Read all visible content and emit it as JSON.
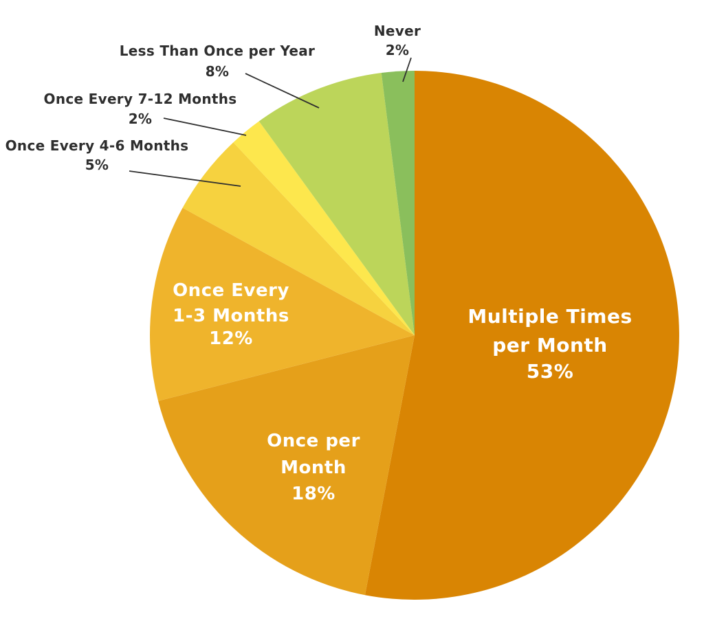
{
  "chart_data": {
    "type": "pie",
    "title": "",
    "legend": "none",
    "background": "#FFFFFF",
    "start_angle_deg": 0,
    "direction": "clockwise",
    "label_text_color_inside": "#FFFFFF",
    "label_text_color_outside": "#2E2E2E",
    "slices": [
      {
        "slug": "multiple-times-per-month",
        "label": "Multiple Times per Month",
        "label_lines": [
          "Multiple Times",
          "per Month"
        ],
        "value": 53,
        "pct_text": "53%",
        "color": "#D98503",
        "label_placement": "inside"
      },
      {
        "slug": "once-per-month",
        "label": "Once per Month",
        "label_lines": [
          "Once per",
          "Month"
        ],
        "value": 18,
        "pct_text": "18%",
        "color": "#E5A01A",
        "label_placement": "inside"
      },
      {
        "slug": "once-every-1-3-months",
        "label": "Once Every 1-3 Months",
        "label_lines": [
          "Once Every",
          "1-3 Months"
        ],
        "value": 12,
        "pct_text": "12%",
        "color": "#EFB42C",
        "label_placement": "inside"
      },
      {
        "slug": "once-every-4-6-months",
        "label": "Once Every 4-6 Months",
        "label_lines": [
          "Once Every 4-6 Months"
        ],
        "value": 5,
        "pct_text": "5%",
        "color": "#F6D23F",
        "label_placement": "outside"
      },
      {
        "slug": "once-every-7-12-months",
        "label": "Once Every 7-12 Months",
        "label_lines": [
          "Once Every 7-12 Months"
        ],
        "value": 2,
        "pct_text": "2%",
        "color": "#FDE74D",
        "label_placement": "outside"
      },
      {
        "slug": "less-than-once-per-year",
        "label": "Less Than Once per Year",
        "label_lines": [
          "Less Than Once per Year"
        ],
        "value": 8,
        "pct_text": "8%",
        "color": "#BCD55A",
        "label_placement": "outside"
      },
      {
        "slug": "never",
        "label": "Never",
        "label_lines": [
          "Never"
        ],
        "value": 2,
        "pct_text": "2%",
        "color": "#8ABF5C",
        "label_placement": "outside"
      }
    ]
  }
}
